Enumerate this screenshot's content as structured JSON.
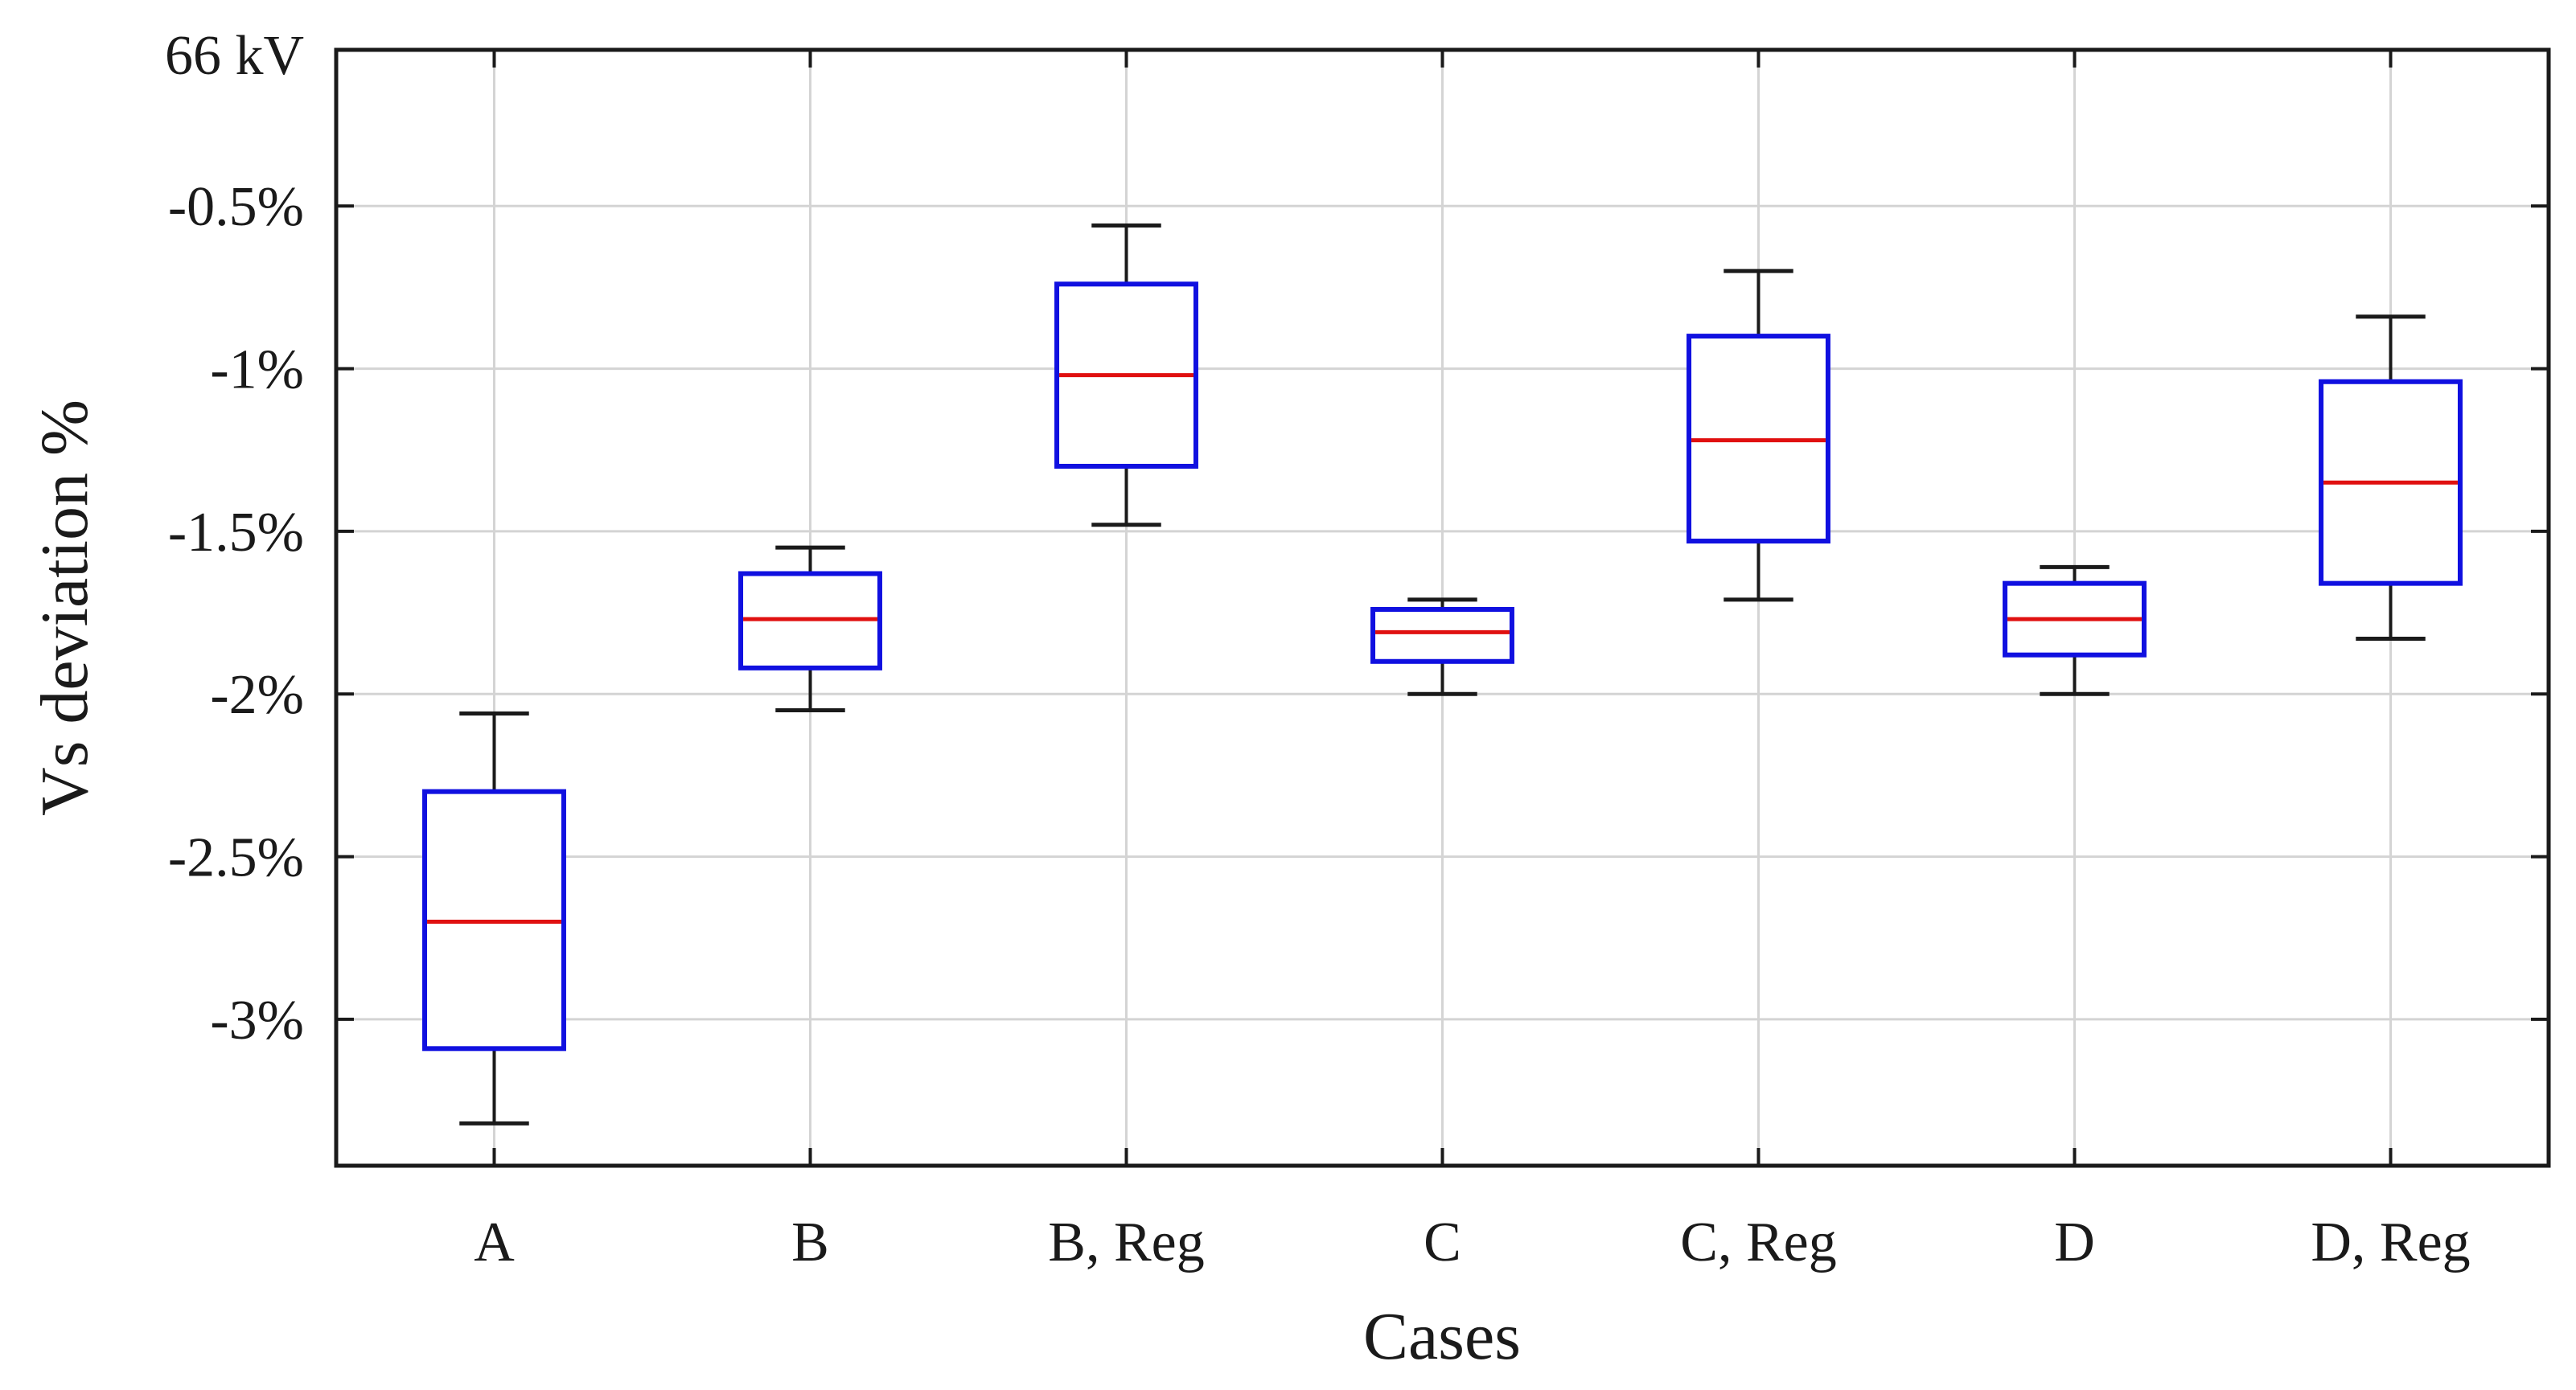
{
  "chart_data": {
    "type": "boxplot",
    "title": "",
    "top_label": "66 kV",
    "xlabel": "Cases",
    "ylabel": "Vs deviation %",
    "ylim": [
      -3.45,
      -0.02
    ],
    "grid": true,
    "categories": [
      "A",
      "B",
      "B, Reg",
      "C",
      "C, Reg",
      "D",
      "D, Reg"
    ],
    "y_ticks": [
      {
        "value": -0.5,
        "label": "-0.5%"
      },
      {
        "value": -1.0,
        "label": "-1%"
      },
      {
        "value": -1.5,
        "label": "-1.5%"
      },
      {
        "value": -2.0,
        "label": "-2%"
      },
      {
        "value": -2.5,
        "label": "-2.5%"
      },
      {
        "value": -3.0,
        "label": "-3%"
      }
    ],
    "boxes": [
      {
        "category": "A",
        "whisker_low": -3.32,
        "q1": -3.09,
        "median": -2.7,
        "q3": -2.3,
        "whisker_high": -2.06
      },
      {
        "category": "B",
        "whisker_low": -2.05,
        "q1": -1.92,
        "median": -1.77,
        "q3": -1.63,
        "whisker_high": -1.55
      },
      {
        "category": "B, Reg",
        "whisker_low": -1.48,
        "q1": -1.3,
        "median": -1.02,
        "q3": -0.74,
        "whisker_high": -0.56
      },
      {
        "category": "C",
        "whisker_low": -2.0,
        "q1": -1.9,
        "median": -1.81,
        "q3": -1.74,
        "whisker_high": -1.71
      },
      {
        "category": "C, Reg",
        "whisker_low": -1.71,
        "q1": -1.53,
        "median": -1.22,
        "q3": -0.9,
        "whisker_high": -0.7
      },
      {
        "category": "D",
        "whisker_low": -2.0,
        "q1": -1.88,
        "median": -1.77,
        "q3": -1.66,
        "whisker_high": -1.61
      },
      {
        "category": "D, Reg",
        "whisker_low": -1.83,
        "q1": -1.66,
        "median": -1.35,
        "q3": -1.04,
        "whisker_high": -0.84
      }
    ],
    "colors": {
      "box": "#1010e0",
      "median": "#e01010",
      "whisker": "#1a1a1a",
      "grid": "#d4d4d4",
      "axis": "#1a1a1a"
    }
  }
}
